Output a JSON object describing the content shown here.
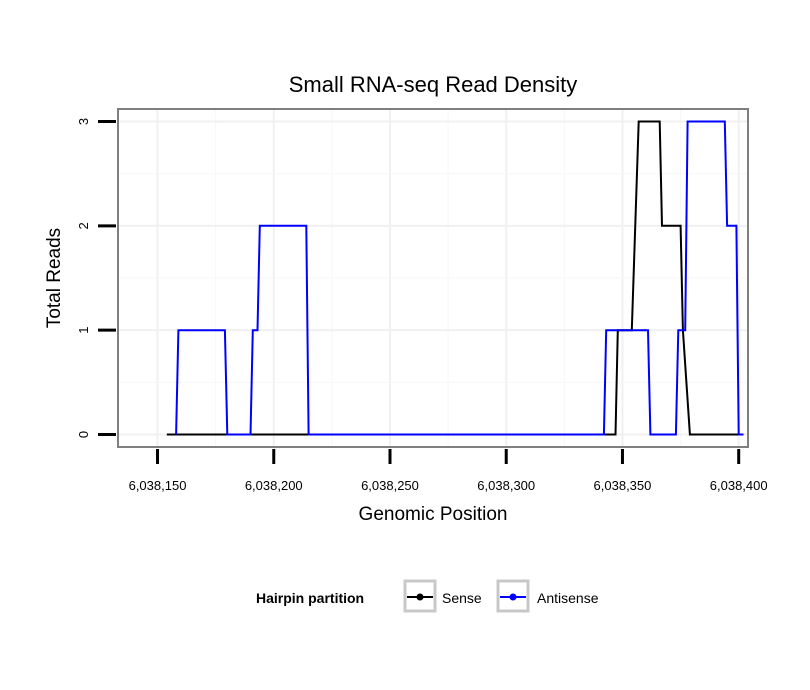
{
  "chart_data": {
    "type": "line",
    "title": "Small RNA-seq Read Density",
    "xlabel": "Genomic Position",
    "ylabel": "Total Reads",
    "xlim": [
      6038133,
      6038404
    ],
    "ylim": [
      -0.12,
      3.12
    ],
    "xticks": [
      6038150,
      6038200,
      6038250,
      6038300,
      6038350,
      6038400
    ],
    "xtick_labels": [
      "6,038,150",
      "6,038,200",
      "6,038,250",
      "6,038,300",
      "6,038,350",
      "6,038,400"
    ],
    "yticks": [
      0,
      1,
      2,
      3
    ],
    "ytick_labels": [
      "0",
      "1",
      "2",
      "3"
    ],
    "grid": true,
    "legend": {
      "title": "Hairpin partition",
      "position": "bottom",
      "entries": [
        "Sense",
        "Antisense"
      ]
    },
    "series": [
      {
        "name": "Sense",
        "color": "#000000",
        "x": [
          6038154,
          6038347,
          6038348,
          6038354,
          6038357,
          6038366,
          6038367,
          6038375,
          6038376,
          6038379,
          6038402
        ],
        "y": [
          0,
          0,
          1,
          1,
          3,
          3,
          2,
          2,
          1,
          0,
          0
        ]
      },
      {
        "name": "Antisense",
        "color": "#0000ff",
        "x": [
          6038158,
          6038159,
          6038179,
          6038180,
          6038190,
          6038191,
          6038193,
          6038194,
          6038214,
          6038215,
          6038342,
          6038343,
          6038357,
          6038361,
          6038362,
          6038373,
          6038374,
          6038377,
          6038378,
          6038394,
          6038395,
          6038399,
          6038400,
          6038402
        ],
        "y": [
          0,
          1,
          1,
          0,
          0,
          1,
          1,
          2,
          2,
          0,
          0,
          1,
          1,
          1,
          0,
          0,
          1,
          1,
          3,
          3,
          2,
          2,
          0,
          0
        ]
      }
    ]
  }
}
